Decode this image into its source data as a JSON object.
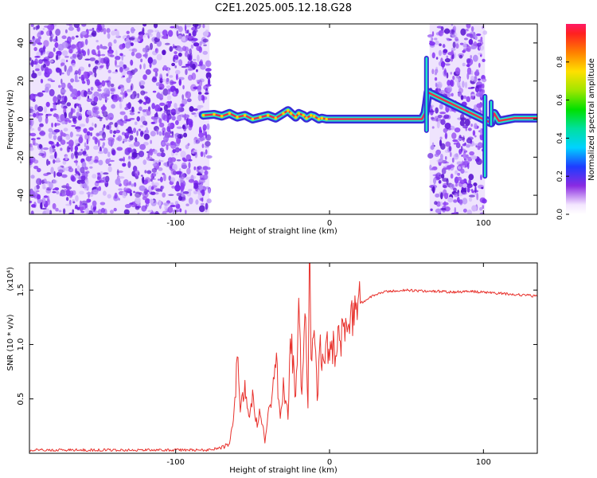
{
  "title": "C2E1.2025.005.12.18.G28",
  "colors": {
    "snr_line": "#e8322d",
    "ridge_inner": "#e8324a",
    "ridge_outer": "#1ee8c8",
    "noise": "#7d2ff0"
  },
  "chart_data": [
    {
      "type": "heatmap",
      "title": "C2E1.2025.005.12.18.G28",
      "xlabel": "Height of straight line (km)",
      "ylabel": "Frequency (Hz)",
      "xlim": [
        -195,
        135
      ],
      "ylim": [
        -50,
        50
      ],
      "xticks": [
        -100,
        0,
        100
      ],
      "yticks": [
        -40,
        -20,
        0,
        20,
        40
      ],
      "grid": false,
      "colorbar": {
        "label": "Normalized spectral amplitude",
        "range": [
          0,
          1
        ],
        "ticks": [
          0.0,
          0.2,
          0.4,
          0.6,
          0.8
        ]
      },
      "regions": [
        {
          "name": "noise",
          "x": [
            -195,
            -78
          ]
        },
        {
          "name": "noise",
          "x": [
            65,
            101
          ]
        }
      ],
      "ridge": {
        "x": [
          -82,
          -75,
          -70,
          -65,
          -60,
          -55,
          -50,
          -45,
          -40,
          -35,
          -30,
          -27,
          -25,
          -22,
          -20,
          -17,
          -15,
          -12,
          -10,
          -7,
          -5,
          -2,
          0,
          5,
          10,
          20,
          30,
          40,
          50,
          60,
          62,
          63,
          64,
          105,
          107,
          110,
          120,
          135
        ],
        "y": [
          2,
          2.5,
          1.5,
          3,
          1,
          2,
          0,
          1,
          2,
          0.5,
          3,
          4.5,
          3,
          1,
          3,
          2,
          0.5,
          2,
          1.5,
          0,
          0.5,
          0,
          0,
          0,
          0,
          0,
          0,
          0,
          0,
          0,
          3,
          8,
          14,
          -2,
          3,
          -1,
          0.5,
          0.5
        ]
      },
      "spikes": [
        {
          "x": 63,
          "y": [
            -6,
            32
          ]
        },
        {
          "x": 101,
          "y": [
            -30,
            12
          ]
        },
        {
          "x": 105,
          "y": [
            -3,
            9
          ]
        }
      ]
    },
    {
      "type": "line",
      "xlabel": "Height of straight line (km)",
      "ylabel": "SNR (10 * v/v)",
      "y_multiplier": "(x10⁴)",
      "xlim": [
        -195,
        135
      ],
      "ylim": [
        0,
        1.75
      ],
      "xticks": [
        -100,
        0,
        100
      ],
      "yticks": [
        0.5,
        1.0,
        1.5
      ],
      "grid": false,
      "series": [
        {
          "x": [
            -195,
            -150,
            -100,
            -80,
            -70,
            -65,
            -62,
            -60,
            -58,
            -55,
            -52,
            -50,
            -47,
            -45,
            -42,
            -40,
            -37,
            -35,
            -32,
            -30,
            -27,
            -25,
            -22,
            -20,
            -18,
            -16,
            -14,
            -13,
            -12,
            -10,
            -8,
            -6,
            -4,
            -2,
            0,
            2,
            4,
            6,
            8,
            10,
            12,
            15,
            20,
            25,
            30,
            35,
            40,
            50,
            60,
            70,
            80,
            90,
            100,
            110,
            120,
            130,
            135
          ],
          "values": [
            0.03,
            0.03,
            0.03,
            0.03,
            0.05,
            0.1,
            0.35,
            0.9,
            0.4,
            0.6,
            0.3,
            0.5,
            0.25,
            0.4,
            0.1,
            0.35,
            0.5,
            0.9,
            0.3,
            0.6,
            0.35,
            1.1,
            0.45,
            1.25,
            0.55,
            1.4,
            0.45,
            1.75,
            0.8,
            1.2,
            0.5,
            0.95,
            0.75,
            1.05,
            0.85,
            1.0,
            0.95,
            1.1,
            1.05,
            1.15,
            1.2,
            1.3,
            1.38,
            1.42,
            1.46,
            1.48,
            1.49,
            1.5,
            1.49,
            1.49,
            1.48,
            1.49,
            1.48,
            1.47,
            1.46,
            1.45,
            1.44
          ]
        }
      ]
    }
  ]
}
